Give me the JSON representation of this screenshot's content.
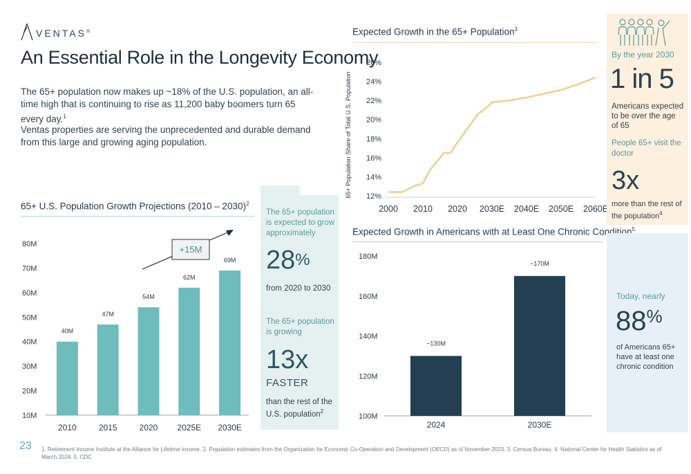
{
  "header": {
    "brand": "VENTAS",
    "brand_mark": "®",
    "title": "An Essential Role in the Longevity Economy",
    "title_dot": ".",
    "intro_p1": "The 65+ population now makes up ~18% of the U.S. population, an all-time high that is continuing to rise as 11,200 baby boomers turn 65 every day.",
    "intro_p1_sup": "1",
    "intro_p2": "Ventas properties are serving the unprecedented and durable demand from this large and growing aging population."
  },
  "colors": {
    "teal_bar": "#6fbcbc",
    "navy_bar": "#233f51",
    "line": "#f1cd8e",
    "accent_teal": "#5c9a9e"
  },
  "left_stats": {
    "s1_label": "The 65+ population is expected to grow approximately",
    "s1_value": "28",
    "s1_unit": "%",
    "s1_desc": "from 2020 to 2030",
    "s2_label": "The 65+ population is growing",
    "s2_value": "13x",
    "s2_sub": "FASTER",
    "s2_desc": "than the rest of the U.S. population",
    "s2_sup": "2"
  },
  "right_stats": {
    "icon": "people-group-icon",
    "r1_label": "By the year 2030",
    "r1_value": "1 in 5",
    "r1_desc": "Americans expected to be over the age of 65",
    "r2_label": "People 65+ visit the doctor",
    "r2_value": "3x",
    "r2_desc": "more than the rest of the population",
    "r2_sup": "4",
    "r3_label": "Today, nearly",
    "r3_value": "88",
    "r3_unit": "%",
    "r3_desc": "of Americans 65+ have at least one chronic condition"
  },
  "chart_data": [
    {
      "type": "bar",
      "title": "65+ U.S. Population Growth Projections (2010 – 2030)",
      "title_sup": "2",
      "categories": [
        "2010",
        "2015",
        "2020",
        "2025E",
        "2030E"
      ],
      "values": [
        40,
        47,
        54,
        62,
        69
      ],
      "data_labels": [
        "40M",
        "47M",
        "54M",
        "62M",
        "69M"
      ],
      "yticks": [
        "10M",
        "20M",
        "30M",
        "40M",
        "50M",
        "60M",
        "70M",
        "80M"
      ],
      "ylim": [
        10,
        80
      ],
      "annotation": "+15M",
      "grid": false
    },
    {
      "type": "line",
      "title": "Expected Growth in the 65+ Population",
      "title_sup": "3",
      "ylabel": "65+ Population Share of Total U.S. Population",
      "xticks": [
        "2000",
        "2010",
        "2020",
        "2030E",
        "2040E",
        "2050E",
        "2060E"
      ],
      "yticks": [
        "12%",
        "14%",
        "16%",
        "18%",
        "20%",
        "22%",
        "24%",
        "26%"
      ],
      "ylim": [
        12,
        26
      ],
      "x": [
        2000,
        2004,
        2008,
        2010,
        2012,
        2015,
        2016,
        2018,
        2020,
        2022,
        2024,
        2026,
        2028,
        2030,
        2035,
        2040,
        2045,
        2050,
        2055,
        2060
      ],
      "y": [
        12.4,
        12.4,
        13.1,
        13.3,
        14.7,
        16.0,
        16.5,
        16.5,
        17.6,
        18.6,
        19.6,
        20.6,
        21.1,
        21.8,
        22.0,
        22.3,
        22.7,
        23.1,
        23.7,
        24.4
      ],
      "grid": false
    },
    {
      "type": "bar",
      "title": "Expected Growth in Americans with at Least One Chronic Condition",
      "title_sup": "5",
      "categories": [
        "2024",
        "2030E"
      ],
      "values": [
        130,
        170
      ],
      "data_labels": [
        "~130M",
        "~170M"
      ],
      "yticks": [
        "100M",
        "120M",
        "140M",
        "160M",
        "180M"
      ],
      "ylim": [
        100,
        180
      ],
      "grid": false
    }
  ],
  "footer": {
    "page_number": "23",
    "footnotes": "1. Retirement Income Institute at the Alliance for Lifetime Income. 2. Population estimates from the Organization for Economic Co-Operation and Development (OECD) as of November 2023. 3. Census Bureau. 4. National Center for Health Statistics as of March 2024. 5. CDC"
  }
}
